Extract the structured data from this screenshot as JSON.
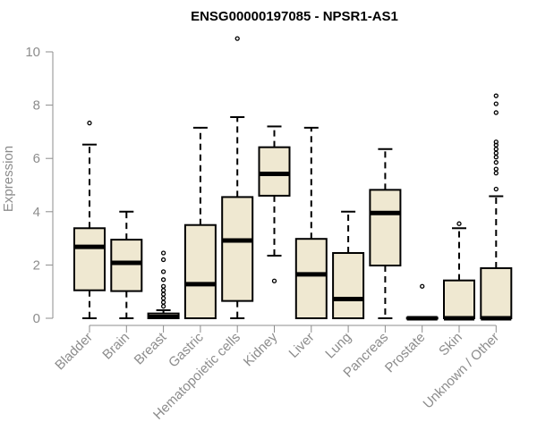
{
  "chart_data": {
    "type": "box",
    "title": "ENSG00000197085 - NPSR1-AS1",
    "xlabel": "",
    "ylabel": "Expression",
    "ylim": [
      0,
      10.5
    ],
    "yticks": [
      0,
      2,
      4,
      6,
      8,
      10
    ],
    "box_fill": "#efe8d1",
    "categories": [
      "Bladder",
      "Brain",
      "Breast",
      "Gastric",
      "Hematopoietic cells",
      "Kidney",
      "Liver",
      "Lung",
      "Pancreas",
      "Prostate",
      "Skin",
      "Unknown / Other"
    ],
    "boxes": [
      {
        "min": 0,
        "q1": 1.05,
        "median": 2.68,
        "q3": 3.38,
        "max": 6.52,
        "outliers": [
          7.33
        ]
      },
      {
        "min": 0,
        "q1": 1.02,
        "median": 2.08,
        "q3": 2.95,
        "max": 4.0,
        "outliers": []
      },
      {
        "min": 0,
        "q1": 0.0,
        "median": 0.05,
        "q3": 0.18,
        "max": 0.3,
        "outliers": [
          0.45,
          0.6,
          0.75,
          0.9,
          1.05,
          1.2,
          1.45,
          1.75,
          2.2,
          2.45
        ]
      },
      {
        "min": 0,
        "q1": 0.0,
        "median": 1.28,
        "q3": 3.5,
        "max": 7.15,
        "outliers": []
      },
      {
        "min": 0,
        "q1": 0.65,
        "median": 2.92,
        "q3": 4.55,
        "max": 7.55,
        "outliers": [
          10.5
        ]
      },
      {
        "min": 2.35,
        "q1": 4.6,
        "median": 5.42,
        "q3": 6.42,
        "max": 7.2,
        "outliers": [
          1.4
        ]
      },
      {
        "min": 0,
        "q1": 0.0,
        "median": 1.65,
        "q3": 2.98,
        "max": 7.15,
        "outliers": []
      },
      {
        "min": 0,
        "q1": 0.0,
        "median": 0.72,
        "q3": 2.45,
        "max": 4.0,
        "outliers": []
      },
      {
        "min": 0,
        "q1": 1.98,
        "median": 3.95,
        "q3": 4.82,
        "max": 6.35,
        "outliers": []
      },
      {
        "min": 0,
        "q1": 0.0,
        "median": 0.0,
        "q3": 0.02,
        "max": 0.02,
        "outliers": [
          1.2
        ]
      },
      {
        "min": 0,
        "q1": 0.0,
        "median": 0.0,
        "q3": 1.42,
        "max": 3.38,
        "outliers": [
          3.55
        ]
      },
      {
        "min": 0,
        "q1": 0.0,
        "median": 0.0,
        "q3": 1.88,
        "max": 4.58,
        "outliers": [
          4.85,
          5.45,
          5.6,
          5.85,
          6.05,
          6.2,
          6.35,
          6.5,
          6.62,
          7.72,
          8.05,
          8.35
        ]
      }
    ]
  }
}
